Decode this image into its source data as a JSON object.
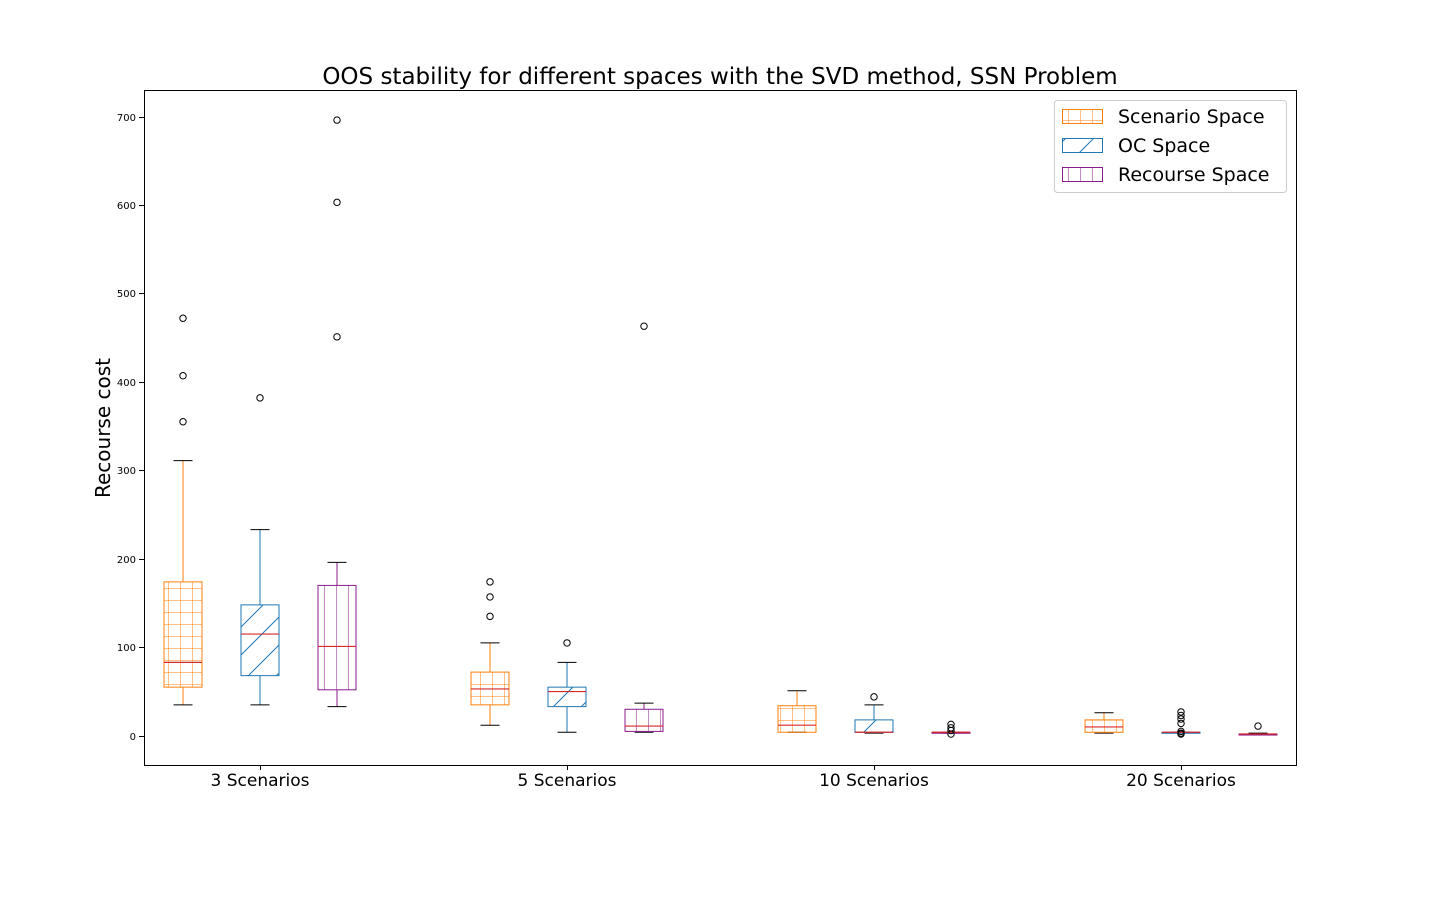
{
  "chart_data": {
    "type": "box",
    "title": "OOS stability for different spaces with the SVD method, SSN Problem",
    "xlabel": "",
    "ylabel": "Recourse cost",
    "ylim": [
      -33,
      730
    ],
    "yticks": [
      0,
      100,
      200,
      300,
      400,
      500,
      600,
      700
    ],
    "categories": [
      "3 Scenarios",
      "5 Scenarios",
      "10 Scenarios",
      "20 Scenarios"
    ],
    "grid": false,
    "legend_position": "top-right",
    "median_color": "#d62728",
    "series": [
      {
        "name": "Scenario Space",
        "color": "#ff7f0e",
        "hatch": "grid",
        "boxes": [
          {
            "whisker_low": 35,
            "q1": 55,
            "median": 83,
            "q3": 174,
            "whisker_high": 311,
            "outliers": [
              355,
              407,
              472
            ]
          },
          {
            "whisker_low": 12,
            "q1": 35,
            "median": 53,
            "q3": 72,
            "whisker_high": 105,
            "outliers": [
              135,
              157,
              174
            ]
          },
          {
            "whisker_low": 4,
            "q1": 4,
            "median": 12,
            "q3": 34,
            "whisker_high": 51,
            "outliers": []
          },
          {
            "whisker_low": 3,
            "q1": 4,
            "median": 10,
            "q3": 18,
            "whisker_high": 26,
            "outliers": []
          }
        ]
      },
      {
        "name": "OC Space",
        "color": "#1f77b4",
        "hatch": "diagonal",
        "boxes": [
          {
            "whisker_low": 35,
            "q1": 68,
            "median": 115,
            "q3": 148,
            "whisker_high": 233,
            "outliers": [
              382
            ]
          },
          {
            "whisker_low": 4,
            "q1": 33,
            "median": 50,
            "q3": 55,
            "whisker_high": 83,
            "outliers": [
              105
            ]
          },
          {
            "whisker_low": 3,
            "q1": 4,
            "median": 4,
            "q3": 18,
            "whisker_high": 35,
            "outliers": [
              44
            ]
          },
          {
            "whisker_low": 4,
            "q1": 4,
            "median": 4,
            "q3": 4,
            "whisker_high": 4,
            "outliers": [
              2,
              3,
              5,
              14,
              19,
              23,
              27
            ]
          }
        ]
      },
      {
        "name": "Recourse Space",
        "color": "#8b1a8b",
        "hatch": "vertical",
        "boxes": [
          {
            "whisker_low": 33,
            "q1": 52,
            "median": 101,
            "q3": 170,
            "whisker_high": 196,
            "outliers": [
              451,
              603,
              696
            ]
          },
          {
            "whisker_low": 4,
            "q1": 5,
            "median": 11,
            "q3": 30,
            "whisker_high": 37,
            "outliers": [
              463
            ]
          },
          {
            "whisker_low": 3,
            "q1": 4,
            "median": 4,
            "q3": 4,
            "whisker_high": 4,
            "outliers": [
              2,
              6,
              9,
              13
            ]
          },
          {
            "whisker_low": 1,
            "q1": 2,
            "median": 2,
            "q3": 2,
            "whisker_high": 3,
            "outliers": [
              11
            ]
          }
        ]
      }
    ]
  }
}
